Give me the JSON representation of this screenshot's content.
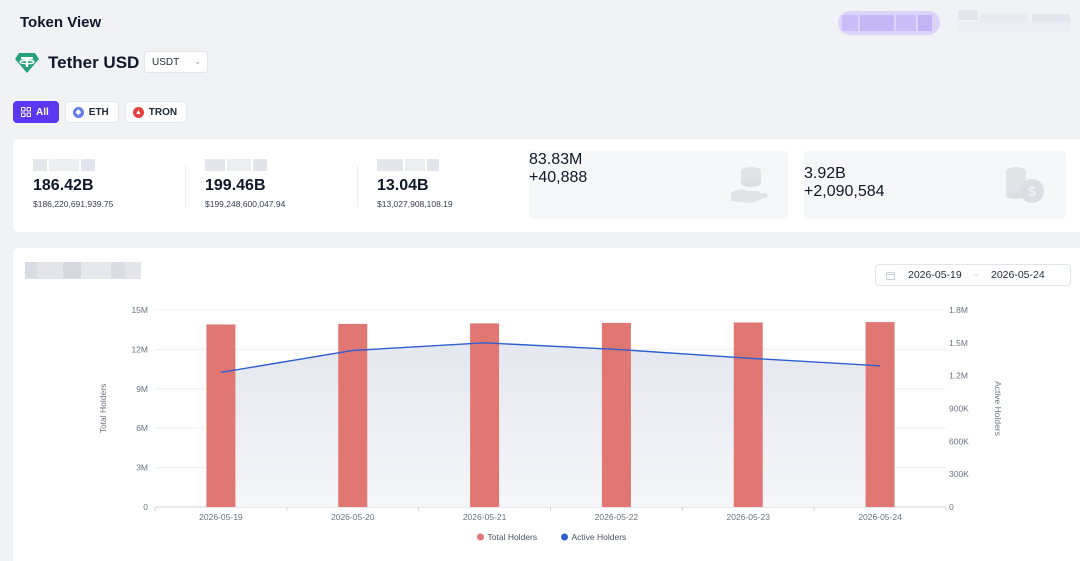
{
  "header": {
    "title": "Token View"
  },
  "token": {
    "name": "Tether USD",
    "symbol_selected": "USDT",
    "logo_icon": "tether-logo-icon",
    "brand_color": "#26a17b"
  },
  "chains": [
    {
      "label": "All",
      "icon": "grid-icon",
      "active": true
    },
    {
      "label": "ETH",
      "icon": "ethereum-icon",
      "active": false
    },
    {
      "label": "TRON",
      "icon": "tron-icon",
      "active": false
    }
  ],
  "stats": [
    {
      "value": "186.42B",
      "sub": "$186,220,691,939.75"
    },
    {
      "value": "199.46B",
      "sub": "$199,248,600,047.94"
    },
    {
      "value": "13.04B",
      "sub": "$13,027,908,108.19"
    },
    {
      "value": "83.83M",
      "sub": "+40,888",
      "icon": "coin-hand-icon"
    },
    {
      "value": "3.92B",
      "sub": "+2,090,584",
      "icon": "coins-dollar-icon"
    }
  ],
  "date_range": {
    "start": "2026-05-19",
    "end": "2026-05-24"
  },
  "chart_data": {
    "type": "bar",
    "categories": [
      "2026-05-19",
      "2026-05-20",
      "2026-05-21",
      "2026-05-22",
      "2026-05-23",
      "2026-05-24"
    ],
    "series": [
      {
        "name": "Total Holders",
        "type": "bar",
        "axis": "left",
        "color": "#e07773",
        "values": [
          13900000,
          13940000,
          13980000,
          14020000,
          14050000,
          14080000
        ]
      },
      {
        "name": "Active Holders",
        "type": "line",
        "axis": "right",
        "color": "#2f5fcf",
        "values": [
          1230000,
          1430000,
          1500000,
          1440000,
          1360000,
          1290000
        ]
      }
    ],
    "ylabel": "Total Holders",
    "y2label": "Active Holders",
    "ylim": [
      0,
      15000000
    ],
    "y2lim": [
      0,
      1800000
    ],
    "yticks": [
      "0",
      "3M",
      "6M",
      "9M",
      "12M",
      "15M"
    ],
    "y2ticks": [
      "0",
      "300K",
      "600K",
      "900K",
      "1.2M",
      "1.5M",
      "1.8M"
    ],
    "legend_position": "bottom-center",
    "grid": true
  }
}
